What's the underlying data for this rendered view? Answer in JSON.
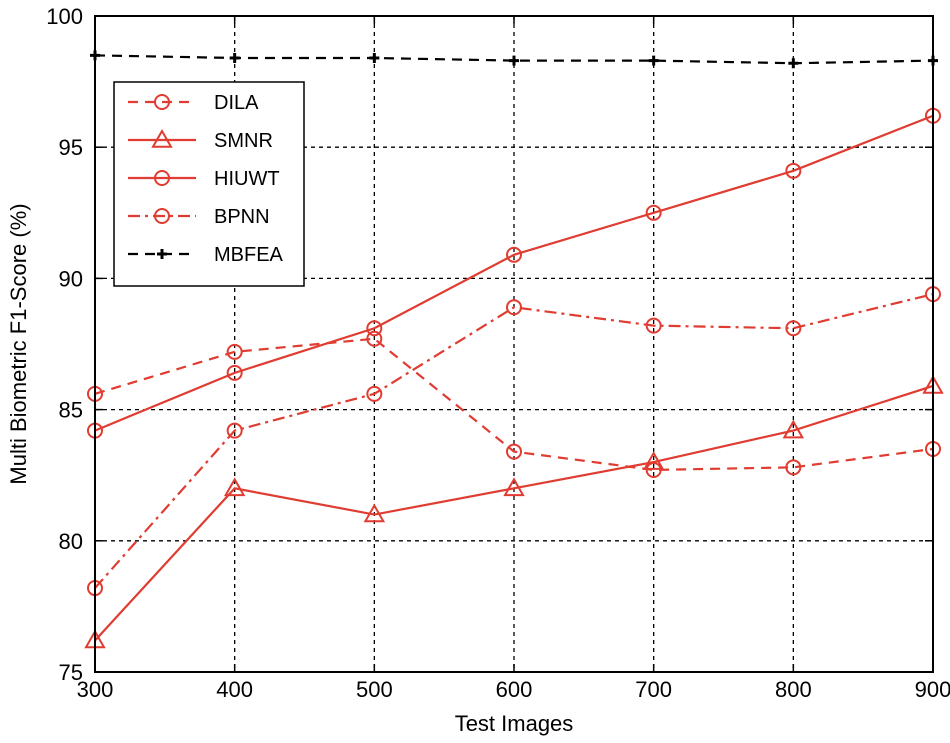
{
  "chart_data": {
    "type": "line",
    "title": "",
    "xlabel": "Test Images",
    "ylabel": "Multi Biometric F1-Score (%)",
    "xlim": [
      300,
      900
    ],
    "ylim": [
      75,
      100
    ],
    "x": [
      300,
      400,
      500,
      600,
      700,
      800,
      900
    ],
    "xticks": [
      "300",
      "400",
      "500",
      "600",
      "700",
      "800",
      "900"
    ],
    "yticks": [
      "75",
      "80",
      "85",
      "90",
      "95",
      "100"
    ],
    "grid": true,
    "legend_position": "top-left",
    "series": [
      {
        "name": "DILA",
        "values": [
          85.6,
          87.2,
          87.7,
          83.4,
          82.7,
          82.8,
          83.5
        ],
        "color": "#e03c31",
        "line": "dashed",
        "marker": "circle"
      },
      {
        "name": "SMNR",
        "values": [
          76.2,
          82.0,
          81.0,
          82.0,
          83.0,
          84.2,
          85.9
        ],
        "color": "#e03c31",
        "line": "solid",
        "marker": "triangle"
      },
      {
        "name": "HIUWT",
        "values": [
          84.2,
          86.4,
          88.1,
          90.9,
          92.5,
          94.1,
          96.2
        ],
        "color": "#e03c31",
        "line": "solid",
        "marker": "circle"
      },
      {
        "name": "BPNN",
        "values": [
          78.2,
          84.2,
          85.6,
          88.9,
          88.2,
          88.1,
          89.4
        ],
        "color": "#e03c31",
        "line": "dashdot",
        "marker": "circle"
      },
      {
        "name": "MBFEA",
        "values": [
          98.5,
          98.4,
          98.4,
          98.3,
          98.3,
          98.2,
          98.3
        ],
        "color": "#000000",
        "line": "dashed",
        "marker": "plus"
      }
    ]
  }
}
